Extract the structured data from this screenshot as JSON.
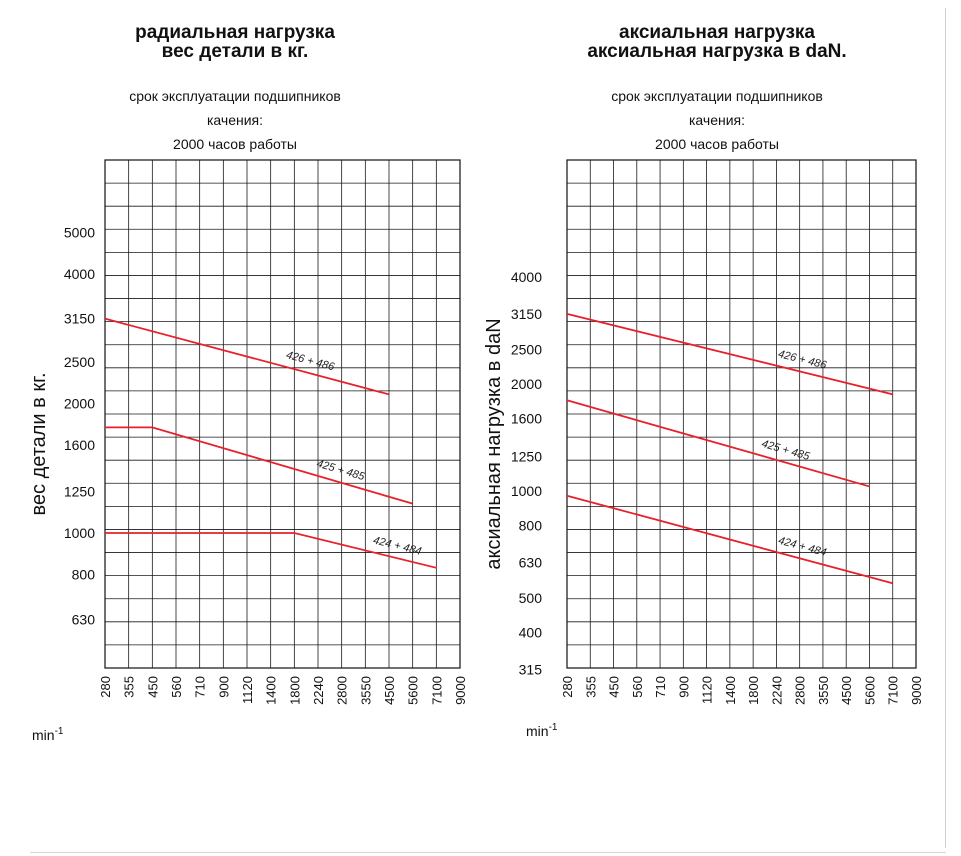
{
  "chart_data": [
    {
      "type": "line",
      "title": "радиальная нагрузка",
      "subtitle": "вес детали в кг.",
      "note_lines": [
        "срок эксплуатации подшипников",
        "качения:",
        "2000 часов работы"
      ],
      "ylabel": "вес детали в кг.",
      "xlabel": "min-1",
      "x_ticks": [
        "280",
        "355",
        "450",
        "560",
        "710",
        "900",
        "1120",
        "1400",
        "1800",
        "2240",
        "2800",
        "3550",
        "4500",
        "5600",
        "7100",
        "9000"
      ],
      "y_ticks": [
        "630",
        "800",
        "1000",
        "1250",
        "1600",
        "2000",
        "2500",
        "3150",
        "4000",
        "5000"
      ],
      "scale": "log-log",
      "grid": true,
      "series": [
        {
          "name": "426 + 486",
          "color": "#e8202a",
          "points": [
            [
              280,
              3150
            ],
            [
              4500,
              2100
            ]
          ]
        },
        {
          "name": "425 + 485",
          "color": "#e8202a",
          "points": [
            [
              280,
              1760
            ],
            [
              450,
              1760
            ],
            [
              5600,
              1170
            ]
          ]
        },
        {
          "name": "424 + 484",
          "color": "#e8202a",
          "points": [
            [
              280,
              1000
            ],
            [
              1800,
              1000
            ],
            [
              7100,
              830
            ]
          ]
        }
      ]
    },
    {
      "type": "line",
      "title": "аксиальная нагрузка",
      "subtitle": "аксиальная нагрузка в daN.",
      "note_lines": [
        "срок эксплуатации подшипников",
        "качения:",
        "2000 часов работы"
      ],
      "ylabel": "аксиальная нагрузка в daN",
      "xlabel": "min-1",
      "x_ticks": [
        "280",
        "355",
        "450",
        "560",
        "710",
        "900",
        "1120",
        "1400",
        "1800",
        "2240",
        "2800",
        "3550",
        "4500",
        "5600",
        "7100",
        "9000"
      ],
      "y_ticks": [
        "315",
        "400",
        "500",
        "630",
        "800",
        "1000",
        "1250",
        "1600",
        "2000",
        "2500",
        "3150",
        "4000"
      ],
      "scale": "log-log",
      "grid": true,
      "series": [
        {
          "name": "426 + 486",
          "color": "#e8202a",
          "points": [
            [
              280,
              3150
            ],
            [
              7100,
              1870
            ]
          ]
        },
        {
          "name": "425 + 485",
          "color": "#e8202a",
          "points": [
            [
              280,
              1800
            ],
            [
              5600,
              1030
            ]
          ]
        },
        {
          "name": "424 + 484",
          "color": "#e8202a",
          "points": [
            [
              280,
              970
            ],
            [
              7100,
              550
            ]
          ]
        }
      ]
    }
  ]
}
